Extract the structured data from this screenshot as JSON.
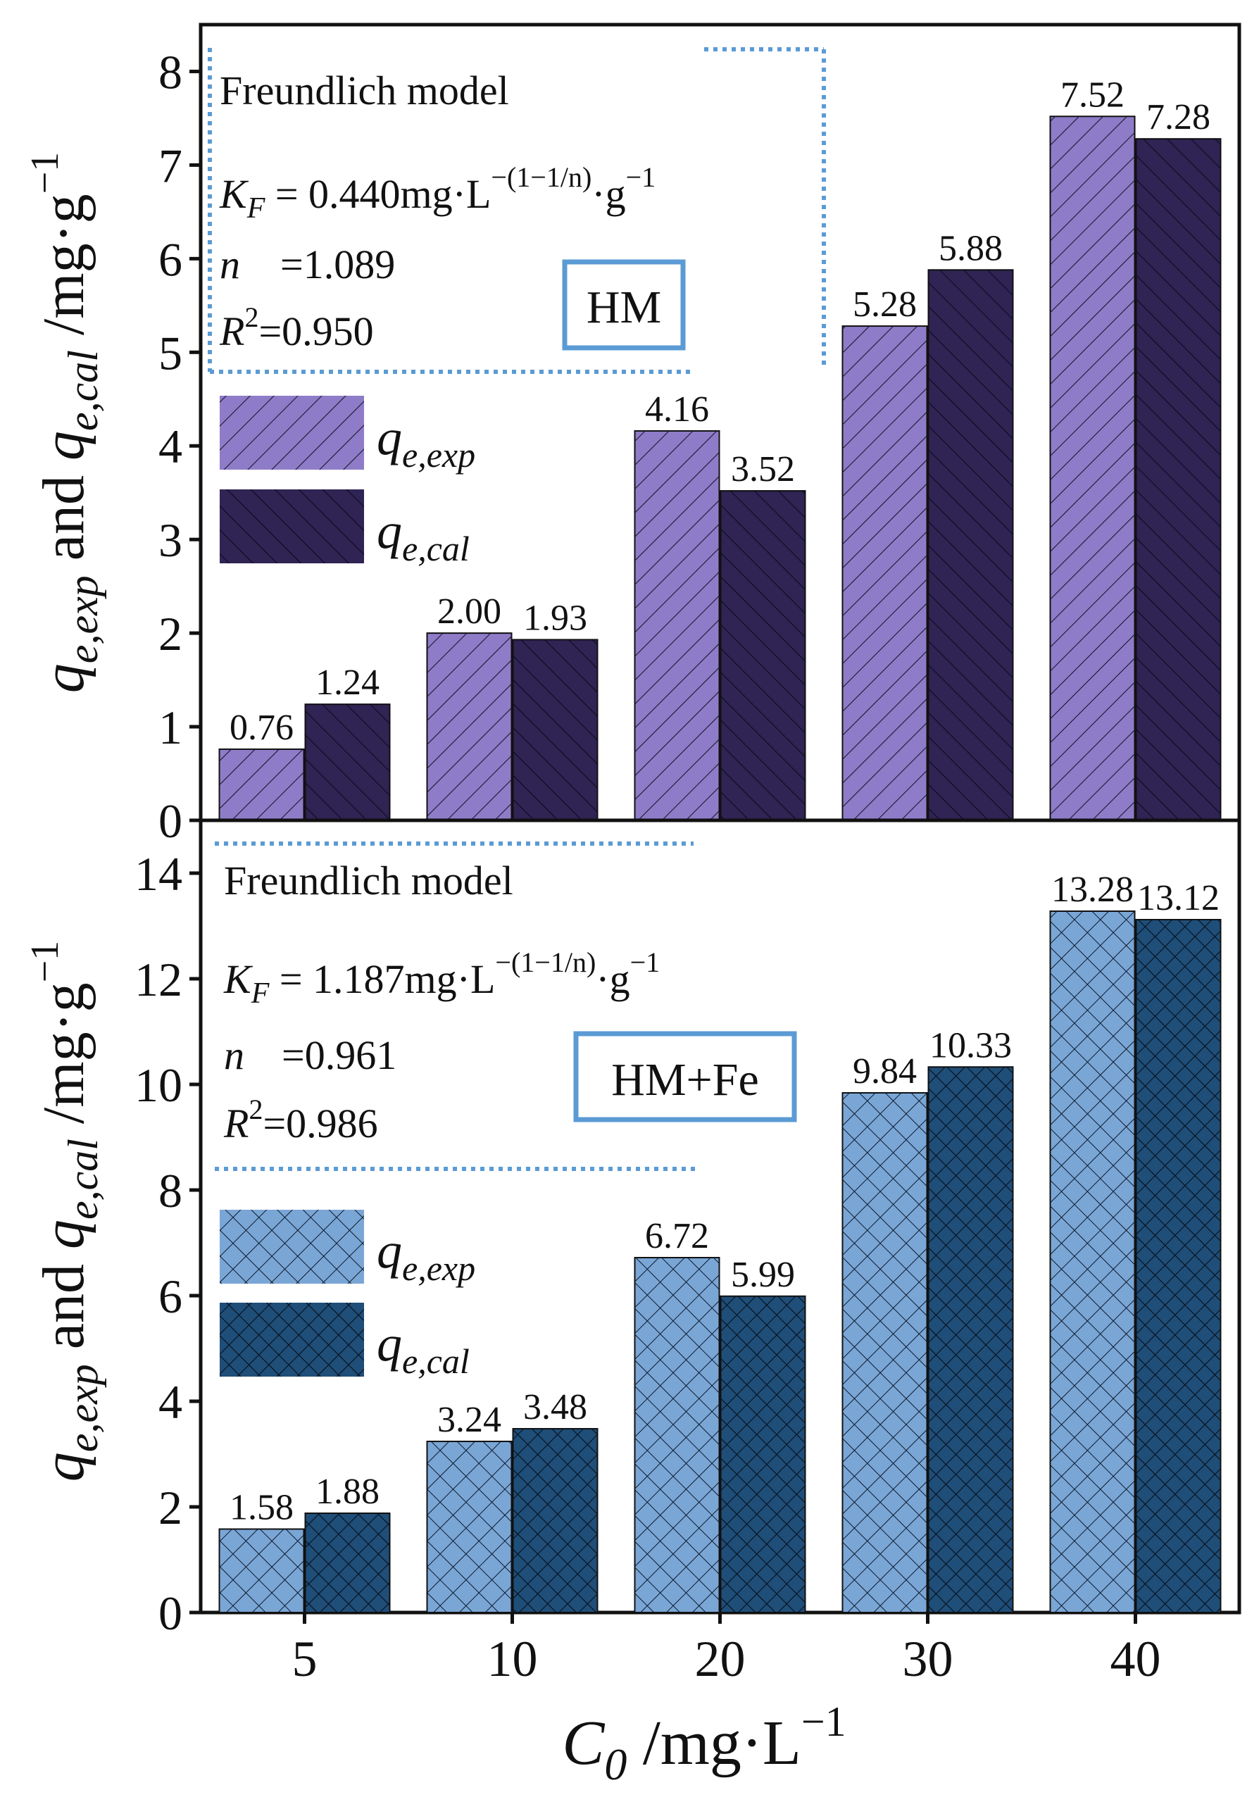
{
  "chart_data": [
    {
      "type": "bar",
      "panel": "top",
      "categories": [
        "5",
        "10",
        "20",
        "30",
        "40"
      ],
      "series": [
        {
          "name": "q_e,exp",
          "values": [
            0.76,
            2.0,
            4.16,
            5.28,
            7.52
          ],
          "labels": [
            "0.76",
            "2.00",
            "4.16",
            "5.28",
            "7.52"
          ],
          "color": "#8f7cc8",
          "hatch": "diagonal"
        },
        {
          "name": "q_e,cal",
          "values": [
            1.24,
            1.93,
            3.52,
            5.88,
            7.28
          ],
          "labels": [
            "1.24",
            "1.93",
            "3.52",
            "5.88",
            "7.28"
          ],
          "color": "#2f2454",
          "hatch": "back-diagonal"
        }
      ],
      "ylim": [
        0,
        8.5
      ],
      "yticks": [
        "0",
        "1",
        "2",
        "3",
        "4",
        "5",
        "6",
        "7",
        "8"
      ],
      "ylabel": "q_e,exp and q_e,cal /mg·g⁻¹",
      "tag": "HM",
      "annotation": {
        "title": "Freundlich model",
        "kf_symbol": "K",
        "kf_sub": "F",
        "kf_value": " = 0.440mg·L",
        "kf_exponent": "−(1−1/n)",
        "kf_tail": "·g",
        "kf_tail_exponent": "−1",
        "n_symbol": "n",
        "n_value": "=1.089",
        "r2_symbol": "R",
        "r2_exponent": "2",
        "r2_value": "=0.950"
      }
    },
    {
      "type": "bar",
      "panel": "bottom",
      "categories": [
        "5",
        "10",
        "20",
        "30",
        "40"
      ],
      "series": [
        {
          "name": "q_e,exp",
          "values": [
            1.58,
            3.24,
            6.72,
            9.84,
            13.28
          ],
          "labels": [
            "1.58",
            "3.24",
            "6.72",
            "9.84",
            "13.28"
          ],
          "color": "#7aa6d6",
          "hatch": "crosshatch"
        },
        {
          "name": "q_e,cal",
          "values": [
            1.88,
            3.48,
            5.99,
            10.33,
            13.12
          ],
          "labels": [
            "1.88",
            "3.48",
            "5.99",
            "10.33",
            "13.12"
          ],
          "color": "#1f4e78",
          "hatch": "crosshatch"
        }
      ],
      "ylim": [
        0,
        15
      ],
      "yticks": [
        "0",
        "2",
        "4",
        "6",
        "8",
        "10",
        "12",
        "14"
      ],
      "ylabel": "q_e,exp and q_e,cal /mg·g⁻¹",
      "tag": "HM+Fe",
      "annotation": {
        "title": "Freundlich model",
        "kf_symbol": "K",
        "kf_sub": "F",
        "kf_value": " = 1.187mg·L",
        "kf_exponent": "−(1−1/n)",
        "kf_tail": "·g",
        "kf_tail_exponent": "−1",
        "n_symbol": "n",
        "n_value": "=0.961",
        "r2_symbol": "R",
        "r2_exponent": "2",
        "r2_value": "=0.986"
      }
    }
  ],
  "legend": {
    "exp_symbol": "q",
    "exp_sub": "e,exp",
    "cal_symbol": "q",
    "cal_sub": "e,cal"
  },
  "ylabel_parts": {
    "q1": "q",
    "q1_sub": "e,exp",
    "and": " and ",
    "q2": "q",
    "q2_sub": "e,cal",
    "unit": " /mg·g",
    "unit_exp": "−1"
  },
  "xlabel_parts": {
    "symbol": "C",
    "sub": "0",
    "unit": " /mg·L",
    "unit_exp": "−1"
  },
  "colors": {
    "annotation_dots": "#5b9bd5",
    "tag_border": "#5b9bd5",
    "axis": "#111111"
  }
}
